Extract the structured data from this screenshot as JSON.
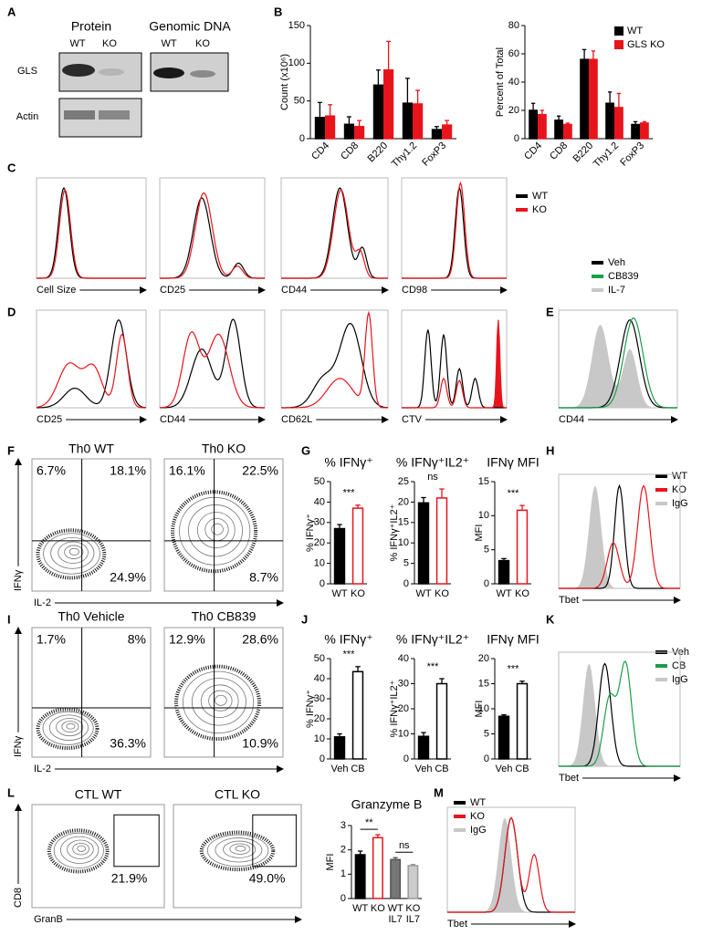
{
  "panel_labels": [
    "A",
    "B",
    "C",
    "D",
    "E",
    "F",
    "G",
    "H",
    "I",
    "J",
    "K",
    "L",
    "M"
  ],
  "blot": {
    "headers": [
      "Protein",
      "Genomic DNA"
    ],
    "lanes": [
      "WT",
      "KO",
      "WT",
      "KO"
    ],
    "rows": [
      "GLS",
      "Actin"
    ]
  },
  "legends": [
    {
      "items": [
        {
          "name": "WT",
          "color": "#000000"
        },
        {
          "name": "KO",
          "color": "#e8141c"
        }
      ]
    },
    {
      "items": [
        {
          "name": "Veh",
          "color": "#000000"
        },
        {
          "name": "CB839",
          "color": "#1a9e4a"
        },
        {
          "name": "IL-7",
          "color": "#c8c8c8"
        }
      ]
    },
    {
      "items": [
        {
          "name": "WT",
          "color": "#000000"
        },
        {
          "name": "KO",
          "color": "#e8141c"
        },
        {
          "name": "IgG",
          "color": "#c8c8c8"
        }
      ]
    },
    {
      "items": [
        {
          "name": "Veh",
          "color": "#000000"
        },
        {
          "name": "CB",
          "color": "#1a9e4a"
        },
        {
          "name": "IgG",
          "color": "#c8c8c8"
        }
      ]
    },
    {
      "items": [
        {
          "name": "WT",
          "color": "#000000"
        },
        {
          "name": "KO",
          "color": "#e8141c"
        },
        {
          "name": "IgG",
          "color": "#c8c8c8"
        }
      ]
    }
  ],
  "histograms": [
    {
      "xlabel": "Cell Size"
    },
    {
      "xlabel": "CD25"
    },
    {
      "xlabel": "CD44"
    },
    {
      "xlabel": "CD98"
    },
    {
      "xlabel": "CD25"
    },
    {
      "xlabel": "CD44"
    },
    {
      "xlabel": "CD62L"
    },
    {
      "xlabel": "CTV"
    },
    {
      "xlabel": "CD44"
    },
    {
      "xlabel": "Tbet"
    },
    {
      "xlabel": "Tbet"
    },
    {
      "xlabel": "Tbet"
    }
  ],
  "flow_panels": [
    {
      "ylabel": "IFNγ",
      "xlabel": "IL-2",
      "plots": [
        {
          "title": "Th0 WT",
          "quadrants": [
            "6.7%",
            "18.1%",
            "24.9%"
          ]
        },
        {
          "title": "Th0 KO",
          "quadrants": [
            "16.1%",
            "22.5%",
            "8.7%"
          ]
        }
      ]
    },
    {
      "ylabel": "IFNγ",
      "xlabel": "IL-2",
      "plots": [
        {
          "title": "Th0 Vehicle",
          "quadrants": [
            "1.7%",
            "8%",
            "36.3%"
          ]
        },
        {
          "title": "Th0 CB839",
          "quadrants": [
            "12.9%",
            "28.6%",
            "10.9%"
          ]
        }
      ]
    },
    {
      "ylabel": "CD8",
      "xlabel": "GranB",
      "plots": [
        {
          "title": "CTL WT",
          "gate": "21.9%"
        },
        {
          "title": "CTL KO",
          "gate": "49.0%"
        }
      ]
    }
  ],
  "chart_data": [
    {
      "type": "bar",
      "ylabel": "Count  (x10⁶)",
      "categories": [
        "CD4",
        "CD8",
        "B220",
        "Thy1.2",
        "FoxP3"
      ],
      "series": [
        {
          "color": "#000000",
          "values": [
            28,
            19,
            71,
            47,
            12
          ],
          "errors": [
            20,
            10,
            20,
            33,
            4
          ]
        },
        {
          "color": "#e8141c",
          "values": [
            30,
            16,
            91,
            46,
            18
          ],
          "errors": [
            15,
            8,
            38,
            18,
            6
          ]
        }
      ],
      "ylim": [
        0,
        150
      ],
      "yticks": [
        0,
        50,
        100,
        150
      ]
    },
    {
      "type": "bar",
      "ylabel": "Percent of Total",
      "categories": [
        "CD4",
        "CD8",
        "B220",
        "Thy1.2",
        "FoxP3"
      ],
      "series": [
        {
          "name": "WT",
          "color": "#000000",
          "values": [
            20,
            13,
            56,
            25,
            10
          ],
          "errors": [
            5,
            3,
            7,
            8,
            2
          ]
        },
        {
          "name": "GLS KO",
          "color": "#e8141c",
          "values": [
            17,
            10,
            56,
            22,
            11
          ],
          "errors": [
            3,
            1,
            6,
            10,
            1
          ]
        }
      ],
      "ylim": [
        0,
        80
      ],
      "yticks": [
        0,
        20,
        40,
        60,
        80
      ],
      "legend": "upper right"
    },
    {
      "type": "bar",
      "title": "% IFNγ⁺",
      "ylabel": "% IFNγ⁺",
      "categories": [
        "WT",
        "KO"
      ],
      "values": [
        27,
        37
      ],
      "errors": [
        2,
        1.5
      ],
      "colors": [
        "#000000",
        "#ffffff"
      ],
      "edgecolors": [
        "#000000",
        "#e8141c"
      ],
      "ylim": [
        0,
        50
      ],
      "yticks": [
        0,
        10,
        20,
        30,
        40,
        50
      ],
      "annotations": [
        "***"
      ]
    },
    {
      "type": "bar",
      "title": "% IFNγ⁺IL2⁺",
      "ylabel": "% IFNγ⁺IL2⁺",
      "categories": [
        "WT",
        "KO"
      ],
      "values": [
        19.8,
        21
      ],
      "errors": [
        1.3,
        2.2
      ],
      "colors": [
        "#000000",
        "#ffffff"
      ],
      "edgecolors": [
        "#000000",
        "#e8141c"
      ],
      "ylim": [
        0,
        25
      ],
      "yticks": [
        0,
        5,
        10,
        15,
        20,
        25
      ],
      "annotations": [
        "ns"
      ]
    },
    {
      "type": "bar",
      "title": "IFNγ MFI",
      "ylabel": "MFI",
      "categories": [
        "WT",
        "KO"
      ],
      "values": [
        3.4,
        10.8
      ],
      "errors": [
        0.3,
        0.7
      ],
      "colors": [
        "#000000",
        "#ffffff"
      ],
      "edgecolors": [
        "#000000",
        "#e8141c"
      ],
      "ylim": [
        0,
        15
      ],
      "yticks": [
        0,
        5,
        10,
        15
      ],
      "annotations": [
        "***"
      ]
    },
    {
      "type": "bar",
      "title": "% IFNγ⁺",
      "ylabel": "% IFNγ⁺",
      "categories": [
        "Veh",
        "CB"
      ],
      "values": [
        11,
        43.5
      ],
      "errors": [
        1.5,
        2.5
      ],
      "colors": [
        "#000000",
        "#ffffff"
      ],
      "edgecolors": [
        "#000000",
        "#000000"
      ],
      "ylim": [
        0,
        50
      ],
      "yticks": [
        0,
        10,
        20,
        30,
        40,
        50
      ],
      "annotations": [
        "***"
      ]
    },
    {
      "type": "bar",
      "title": "% IFNγ⁺IL2⁺",
      "ylabel": "% IFNγ⁺IL2⁺",
      "categories": [
        "Veh",
        "CB"
      ],
      "values": [
        9,
        30
      ],
      "errors": [
        1.5,
        2
      ],
      "colors": [
        "#000000",
        "#ffffff"
      ],
      "edgecolors": [
        "#000000",
        "#000000"
      ],
      "ylim": [
        0,
        40
      ],
      "yticks": [
        0,
        10,
        20,
        30,
        40
      ],
      "annotations": [
        "***"
      ]
    },
    {
      "type": "bar",
      "title": "IFNγ MFI",
      "ylabel": "MFI",
      "categories": [
        "Veh",
        "CB"
      ],
      "values": [
        8.5,
        15
      ],
      "errors": [
        0.3,
        0.5
      ],
      "colors": [
        "#000000",
        "#ffffff"
      ],
      "edgecolors": [
        "#000000",
        "#000000"
      ],
      "ylim": [
        0,
        20
      ],
      "yticks": [
        0,
        5,
        10,
        15,
        20
      ],
      "annotations": [
        "***"
      ]
    },
    {
      "type": "bar",
      "title": "Granzyme B",
      "ylabel": "MFI",
      "categories": [
        "WT",
        "KO",
        "WT IL7",
        "KO IL7"
      ],
      "values": [
        1.8,
        2.5,
        1.6,
        1.35
      ],
      "errors": [
        0.15,
        0.12,
        0.08,
        0.05
      ],
      "colors": [
        "#000000",
        "#ffffff",
        "#777777",
        "#cccccc"
      ],
      "edgecolors": [
        "#000000",
        "#e8141c",
        "#555555",
        "#999999"
      ],
      "ylim": [
        0,
        3
      ],
      "yticks": [
        0,
        1,
        2,
        3
      ],
      "annotations": [
        "**",
        "ns"
      ]
    }
  ]
}
